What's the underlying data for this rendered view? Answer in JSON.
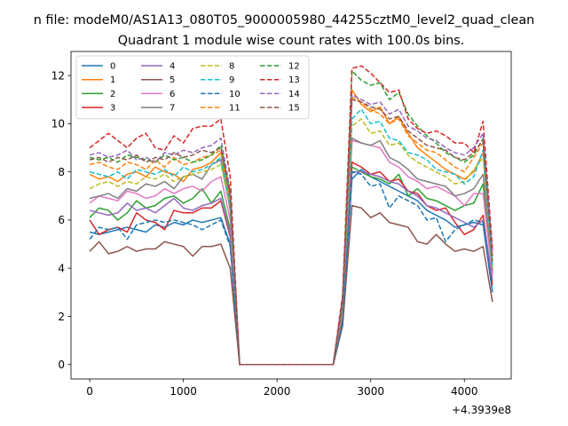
{
  "chart_data": {
    "type": "line",
    "suptitle": "n file: modeM0/AS1A13_080T05_9000005980_44255cztM0_level2_quad_clean",
    "title": "Quadrant 1 module wise count rates with 100.0s bins.",
    "xlabel": "",
    "ylabel": "",
    "x_offset_label": "+4.3939e8",
    "xlim": [
      -200,
      4500
    ],
    "ylim": [
      -0.6,
      13
    ],
    "xticks": [
      0,
      1000,
      2000,
      3000,
      4000
    ],
    "yticks": [
      0,
      2,
      4,
      6,
      8,
      10,
      12
    ],
    "grid": false,
    "legend_position": "top-left",
    "legend_columns": 4,
    "x": [
      0,
      100,
      200,
      300,
      400,
      500,
      600,
      700,
      800,
      900,
      1000,
      1100,
      1200,
      1300,
      1400,
      1500,
      1600,
      1700,
      1800,
      1900,
      2000,
      2100,
      2200,
      2300,
      2400,
      2500,
      2600,
      2700,
      2800,
      2900,
      3000,
      3100,
      3200,
      3300,
      3400,
      3500,
      3600,
      3700,
      3800,
      3900,
      4000,
      4100,
      4200,
      4300
    ],
    "series": [
      {
        "name": "0",
        "color": "#1f77b4",
        "dash": "solid",
        "values": [
          5.5,
          5.4,
          5.5,
          5.6,
          5.7,
          5.6,
          5.5,
          5.8,
          5.7,
          5.9,
          5.8,
          6.0,
          5.9,
          6.0,
          6.1,
          5.0,
          0,
          0,
          0,
          0,
          0,
          0,
          0,
          0,
          0,
          0,
          0,
          1.8,
          7.7,
          8.1,
          7.8,
          7.6,
          7.4,
          7.2,
          7.0,
          6.8,
          6.4,
          6.2,
          6.0,
          5.7,
          5.8,
          5.9,
          5.8,
          3.0
        ]
      },
      {
        "name": "1",
        "color": "#ff7f0e",
        "dash": "solid",
        "values": [
          7.9,
          7.7,
          7.8,
          7.6,
          7.9,
          8.0,
          7.8,
          8.2,
          8.0,
          7.9,
          7.6,
          8.1,
          8.2,
          8.4,
          8.8,
          6.8,
          0,
          0,
          0,
          0,
          0,
          0,
          0,
          0,
          0,
          0,
          0,
          2.4,
          11.4,
          10.8,
          10.5,
          10.7,
          10.0,
          10.3,
          9.6,
          9.0,
          8.7,
          8.4,
          8.1,
          7.9,
          7.7,
          8.0,
          8.8,
          4.2
        ]
      },
      {
        "name": "2",
        "color": "#2ca02c",
        "dash": "solid",
        "values": [
          6.1,
          6.5,
          6.4,
          6.0,
          6.3,
          6.8,
          6.5,
          6.6,
          6.9,
          7.0,
          6.7,
          6.9,
          7.3,
          6.7,
          7.2,
          5.6,
          0,
          0,
          0,
          0,
          0,
          0,
          0,
          0,
          0,
          0,
          0,
          2.0,
          8.2,
          8.0,
          7.8,
          7.7,
          7.5,
          7.9,
          7.0,
          7.3,
          6.9,
          6.8,
          6.6,
          6.4,
          6.6,
          6.7,
          7.5,
          3.8
        ]
      },
      {
        "name": "3",
        "color": "#d62728",
        "dash": "solid",
        "values": [
          6.0,
          5.4,
          5.6,
          5.7,
          5.5,
          6.3,
          6.0,
          5.9,
          5.6,
          6.4,
          6.3,
          6.3,
          6.5,
          6.5,
          6.8,
          5.3,
          0,
          0,
          0,
          0,
          0,
          0,
          0,
          0,
          0,
          0,
          0,
          2.0,
          8.4,
          8.2,
          7.9,
          8.0,
          7.6,
          7.7,
          7.2,
          7.1,
          6.6,
          6.4,
          6.5,
          5.9,
          5.4,
          5.6,
          6.2,
          3.3
        ]
      },
      {
        "name": "4",
        "color": "#9467bd",
        "dash": "solid",
        "values": [
          6.4,
          6.3,
          6.2,
          6.3,
          6.7,
          6.4,
          6.5,
          6.3,
          6.6,
          6.9,
          6.5,
          6.4,
          6.6,
          6.7,
          6.9,
          5.4,
          0,
          0,
          0,
          0,
          0,
          0,
          0,
          0,
          0,
          0,
          0,
          2.1,
          8.0,
          8.0,
          7.9,
          7.8,
          7.6,
          7.5,
          7.2,
          7.0,
          6.6,
          6.5,
          6.3,
          6.1,
          5.9,
          5.7,
          6.0,
          3.5
        ]
      },
      {
        "name": "5",
        "color": "#8c564b",
        "dash": "solid",
        "values": [
          4.7,
          5.1,
          4.6,
          4.7,
          4.9,
          4.7,
          4.8,
          4.8,
          5.1,
          5.0,
          4.9,
          4.5,
          4.9,
          4.9,
          5.0,
          4.0,
          0,
          0,
          0,
          0,
          0,
          0,
          0,
          0,
          0,
          0,
          0,
          1.6,
          6.6,
          6.5,
          6.1,
          6.3,
          5.9,
          5.8,
          5.7,
          5.1,
          5.0,
          5.4,
          5.0,
          4.7,
          4.8,
          4.7,
          4.9,
          2.6
        ]
      },
      {
        "name": "6",
        "color": "#e377c2",
        "dash": "solid",
        "values": [
          6.7,
          7.0,
          6.9,
          6.8,
          7.2,
          7.1,
          6.9,
          7.0,
          7.3,
          7.1,
          7.3,
          7.4,
          7.2,
          7.6,
          7.8,
          6.0,
          0,
          0,
          0,
          0,
          0,
          0,
          0,
          0,
          0,
          0,
          0,
          2.2,
          9.3,
          9.2,
          9.1,
          9.0,
          8.4,
          8.2,
          7.8,
          7.6,
          7.3,
          7.4,
          7.2,
          7.0,
          6.6,
          7.1,
          7.1,
          3.7
        ]
      },
      {
        "name": "7",
        "color": "#7f7f7f",
        "dash": "solid",
        "values": [
          6.9,
          7.0,
          7.1,
          6.9,
          7.3,
          7.2,
          7.5,
          7.4,
          7.6,
          7.3,
          7.8,
          7.9,
          7.7,
          8.3,
          8.5,
          6.4,
          0,
          0,
          0,
          0,
          0,
          0,
          0,
          0,
          0,
          0,
          0,
          2.3,
          9.4,
          9.2,
          9.1,
          9.3,
          8.6,
          8.4,
          8.1,
          7.7,
          7.6,
          7.5,
          7.4,
          7.0,
          7.1,
          7.3,
          7.9,
          3.9
        ]
      },
      {
        "name": "8",
        "color": "#bcbd22",
        "dash": "dashed",
        "values": [
          7.3,
          7.5,
          7.6,
          7.4,
          7.6,
          7.5,
          7.8,
          7.7,
          7.9,
          7.6,
          7.8,
          7.9,
          8.0,
          8.1,
          8.3,
          6.5,
          0,
          0,
          0,
          0,
          0,
          0,
          0,
          0,
          0,
          0,
          0,
          2.4,
          9.9,
          10.2,
          9.6,
          9.7,
          9.1,
          9.2,
          8.7,
          8.4,
          8.2,
          8.0,
          7.8,
          7.5,
          7.6,
          8.1,
          8.6,
          4.0
        ]
      },
      {
        "name": "9",
        "color": "#17becf",
        "dash": "dashed",
        "values": [
          8.0,
          7.9,
          7.8,
          8.0,
          7.7,
          8.1,
          8.0,
          7.9,
          8.1,
          7.8,
          8.2,
          8.0,
          8.1,
          8.3,
          8.6,
          6.6,
          0,
          0,
          0,
          0,
          0,
          0,
          0,
          0,
          0,
          0,
          0,
          2.5,
          10.2,
          10.6,
          10.0,
          10.1,
          9.4,
          9.3,
          8.8,
          8.7,
          8.5,
          8.1,
          8.0,
          7.9,
          7.5,
          7.8,
          8.9,
          4.1
        ]
      },
      {
        "name": "10",
        "color": "#1f77b4",
        "dash": "dashed",
        "values": [
          5.2,
          5.7,
          5.6,
          5.7,
          5.2,
          5.8,
          5.9,
          6.0,
          5.9,
          6.0,
          5.9,
          5.8,
          5.6,
          5.8,
          6.0,
          4.9,
          0,
          0,
          0,
          0,
          0,
          0,
          0,
          0,
          0,
          0,
          0,
          1.7,
          8.0,
          7.9,
          7.4,
          7.5,
          6.5,
          7.0,
          6.8,
          6.6,
          6.0,
          6.1,
          5.1,
          5.6,
          5.8,
          6.0,
          5.9,
          3.0
        ]
      },
      {
        "name": "11",
        "color": "#ff7f0e",
        "dash": "dashed",
        "values": [
          8.3,
          8.4,
          8.2,
          8.1,
          8.4,
          8.3,
          8.1,
          8.5,
          8.2,
          8.6,
          8.3,
          8.4,
          8.6,
          8.7,
          8.9,
          7.0,
          0,
          0,
          0,
          0,
          0,
          0,
          0,
          0,
          0,
          0,
          0,
          2.6,
          11.1,
          10.9,
          10.6,
          10.4,
          10.0,
          10.2,
          9.5,
          9.2,
          8.9,
          8.8,
          8.5,
          8.2,
          8.0,
          8.6,
          9.2,
          4.4
        ]
      },
      {
        "name": "12",
        "color": "#2ca02c",
        "dash": "dashed",
        "values": [
          8.6,
          8.5,
          8.6,
          8.4,
          8.7,
          8.6,
          8.5,
          8.4,
          8.7,
          8.5,
          8.6,
          8.4,
          8.5,
          8.7,
          9.1,
          7.1,
          0,
          0,
          0,
          0,
          0,
          0,
          0,
          0,
          0,
          0,
          0,
          2.7,
          12.2,
          11.8,
          11.6,
          11.7,
          11.0,
          11.3,
          10.4,
          9.9,
          9.5,
          9.2,
          8.8,
          8.6,
          8.4,
          8.7,
          9.4,
          4.5
        ]
      },
      {
        "name": "13",
        "color": "#d62728",
        "dash": "dashed",
        "values": [
          9.0,
          9.3,
          9.6,
          9.3,
          9.0,
          9.4,
          9.6,
          9.0,
          8.9,
          9.5,
          9.2,
          9.8,
          9.9,
          9.9,
          10.2,
          7.8,
          0,
          0,
          0,
          0,
          0,
          0,
          0,
          0,
          0,
          0,
          0,
          2.9,
          12.3,
          12.4,
          12.1,
          11.7,
          11.3,
          11.4,
          10.2,
          9.8,
          9.6,
          9.7,
          9.5,
          9.2,
          9.2,
          8.8,
          10.1,
          4.8
        ]
      },
      {
        "name": "14",
        "color": "#9467bd",
        "dash": "dashed",
        "values": [
          8.7,
          8.8,
          8.6,
          8.7,
          8.9,
          8.5,
          8.6,
          8.4,
          8.8,
          8.7,
          8.9,
          8.8,
          9.0,
          9.1,
          9.4,
          7.2,
          0,
          0,
          0,
          0,
          0,
          0,
          0,
          0,
          0,
          0,
          0,
          2.8,
          11.2,
          11.0,
          10.8,
          10.9,
          10.4,
          10.6,
          9.9,
          9.7,
          9.4,
          9.3,
          9.0,
          8.8,
          8.7,
          9.0,
          9.6,
          4.6
        ]
      },
      {
        "name": "15",
        "color": "#8c564b",
        "dash": "dashed",
        "values": [
          8.5,
          8.6,
          8.4,
          8.6,
          8.5,
          8.7,
          8.4,
          8.6,
          8.5,
          8.8,
          8.6,
          8.7,
          8.9,
          8.8,
          9.0,
          7.0,
          0,
          0,
          0,
          0,
          0,
          0,
          0,
          0,
          0,
          0,
          0,
          2.6,
          11.0,
          10.9,
          10.7,
          10.6,
          10.2,
          10.3,
          9.7,
          9.4,
          9.1,
          9.0,
          8.9,
          8.6,
          8.5,
          8.8,
          9.3,
          4.3
        ]
      }
    ]
  }
}
